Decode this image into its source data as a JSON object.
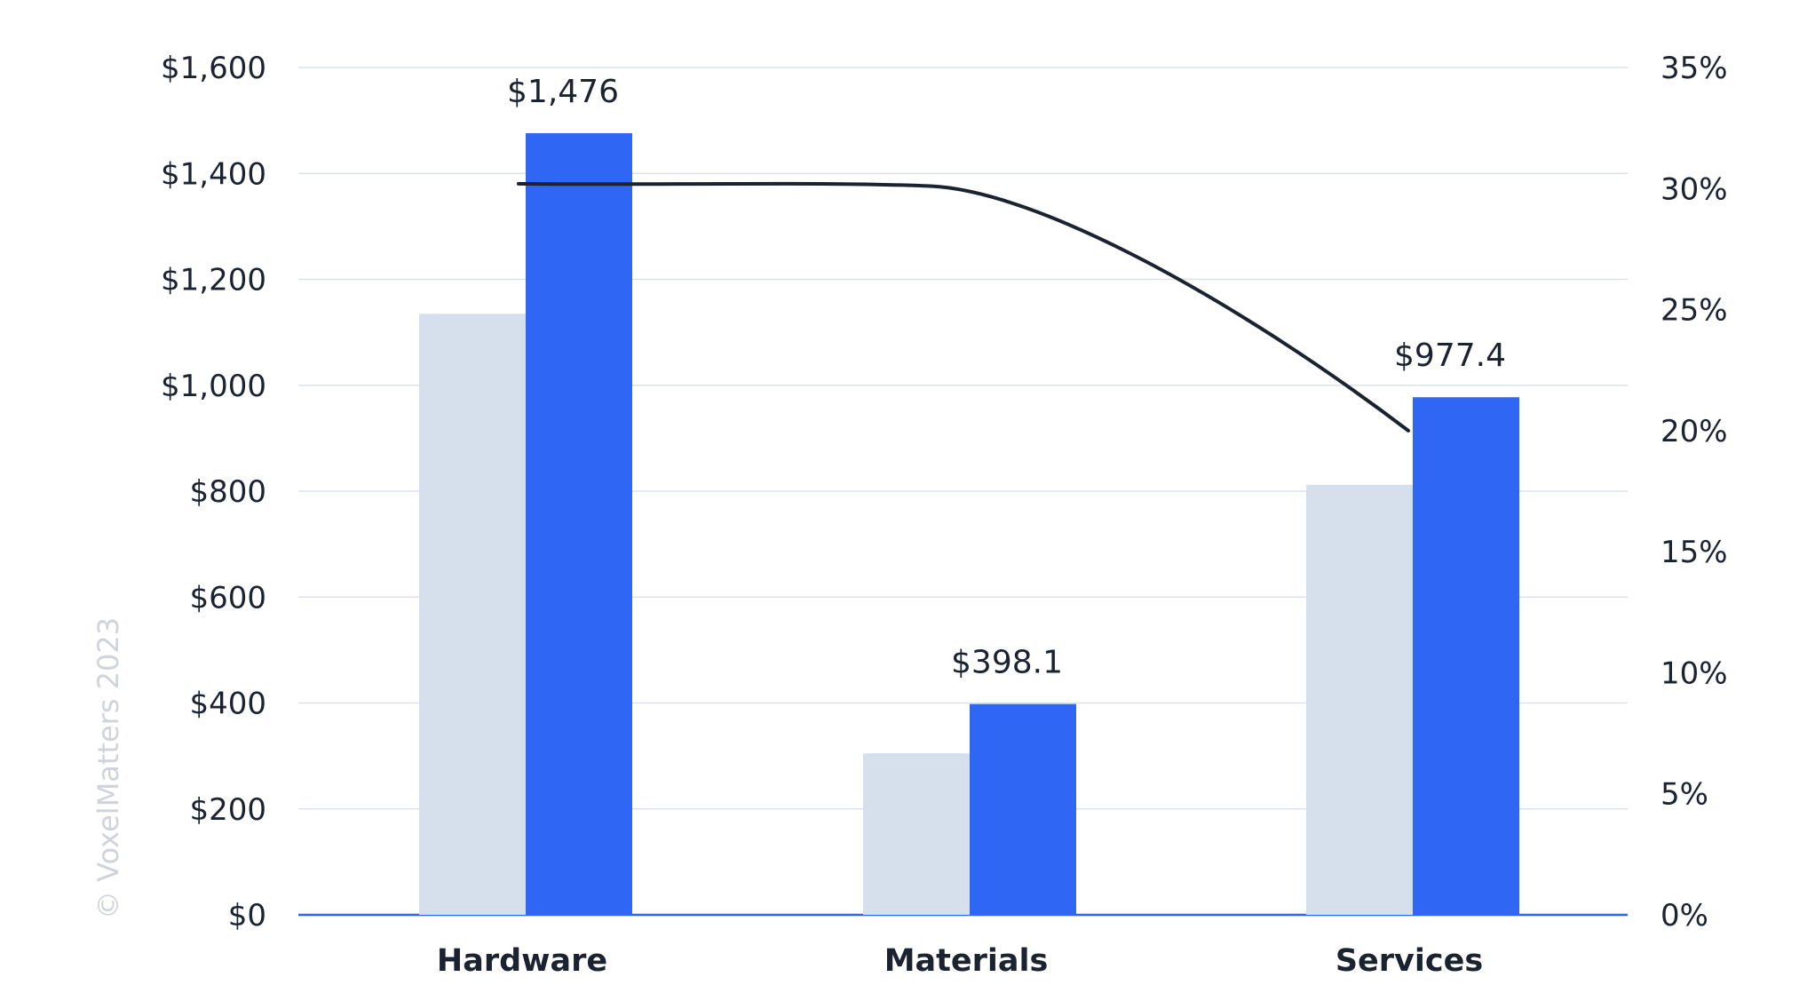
{
  "watermark": "© VoxelMatters 2023",
  "chart_data": {
    "type": "bar",
    "categories": [
      "Hardware",
      "Materials",
      "Services"
    ],
    "series": [
      {
        "values": [
          1135,
          305,
          812
        ],
        "color": "#d6dfec",
        "axis": "left"
      },
      {
        "values": [
          1476,
          398.1,
          977.4
        ],
        "color": "#2f67f4",
        "axis": "left",
        "data_labels": [
          "$1,476",
          "$398.1",
          "$977.4"
        ]
      },
      {
        "type": "line",
        "values": [
          30.2,
          29.4,
          20.0
        ],
        "color": "#1b2230",
        "axis": "right"
      }
    ],
    "y_left": {
      "ylim": [
        0,
        1600
      ],
      "ticks": [
        0,
        200,
        400,
        600,
        800,
        1000,
        1200,
        1400,
        1600
      ],
      "tick_labels": [
        "$0",
        "$200",
        "$400",
        "$600",
        "$800",
        "$1,000",
        "$1,200",
        "$1,400",
        "$1,600"
      ]
    },
    "y_right": {
      "ylim": [
        0,
        35
      ],
      "ticks": [
        0,
        5,
        10,
        15,
        20,
        25,
        30,
        35
      ],
      "tick_labels": [
        "0%",
        "5%",
        "10%",
        "15%",
        "20%",
        "25%",
        "30%",
        "35%"
      ]
    },
    "grid": true,
    "axis_color": "#2f67f4",
    "grid_color": "#dde2ea"
  }
}
